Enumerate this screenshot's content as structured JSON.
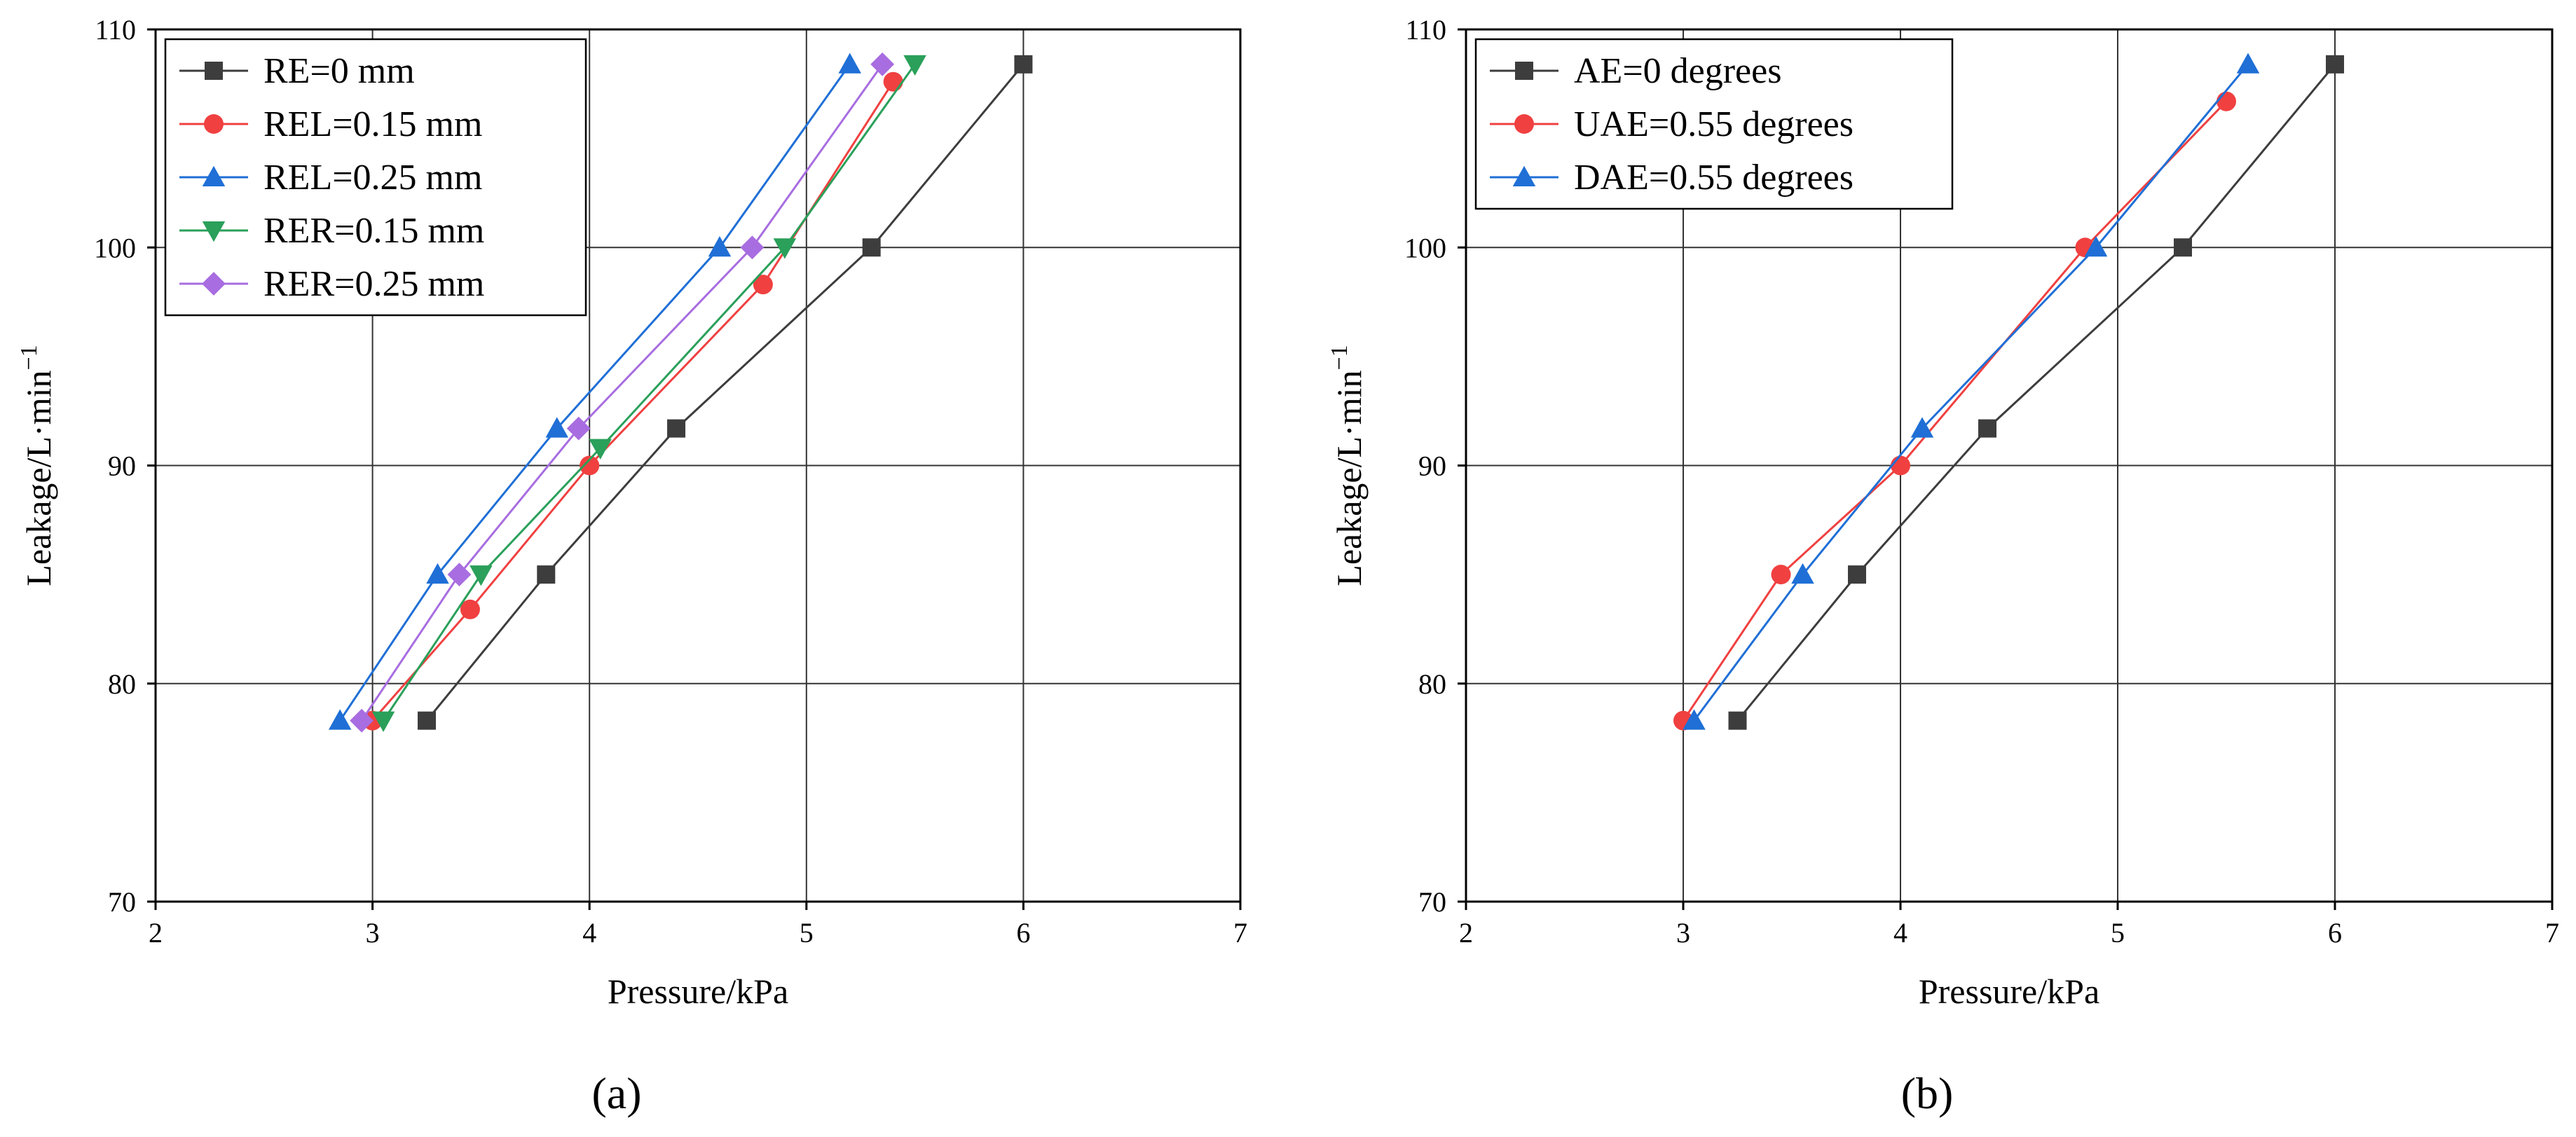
{
  "chart_data": [
    {
      "type": "line",
      "caption": "(a)",
      "xlabel": "Pressure/kPa",
      "ylabel_text": "Leakage/L·min",
      "ylabel_sup": "−1",
      "xlim": [
        2,
        7
      ],
      "ylim": [
        70,
        110
      ],
      "xticks": [
        2,
        3,
        4,
        5,
        6,
        7
      ],
      "yticks": [
        70,
        80,
        90,
        100,
        110
      ],
      "grid": true,
      "legend_position": "top-left",
      "series": [
        {
          "name": "RE=0 mm",
          "color": "#3d3d3d",
          "marker": "square",
          "x": [
            3.25,
            3.8,
            4.4,
            5.3,
            6.0
          ],
          "y": [
            78.3,
            85.0,
            91.7,
            100.0,
            108.4
          ]
        },
        {
          "name": "REL=0.15 mm",
          "color": "#f04040",
          "marker": "circle",
          "x": [
            3.0,
            3.45,
            4.0,
            4.8,
            5.4
          ],
          "y": [
            78.3,
            83.4,
            90.0,
            98.3,
            107.6
          ]
        },
        {
          "name": "REL=0.25 mm",
          "color": "#1f6fd6",
          "marker": "triangle-up",
          "x": [
            2.85,
            3.3,
            3.85,
            4.6,
            5.2
          ],
          "y": [
            78.3,
            85.0,
            91.7,
            100.0,
            108.4
          ]
        },
        {
          "name": "RER=0.15 mm",
          "color": "#2aa05a",
          "marker": "triangle-down",
          "x": [
            3.05,
            3.5,
            4.05,
            4.9,
            5.5
          ],
          "y": [
            78.3,
            85.0,
            90.8,
            100.0,
            108.4
          ]
        },
        {
          "name": "RER=0.25 mm",
          "color": "#a86de0",
          "marker": "diamond",
          "x": [
            2.95,
            3.4,
            3.95,
            4.75,
            5.35
          ],
          "y": [
            78.3,
            85.0,
            91.7,
            100.0,
            108.4
          ]
        }
      ]
    },
    {
      "type": "line",
      "caption": "(b)",
      "xlabel": "Pressure/kPa",
      "ylabel_text": "Leakage/L·min",
      "ylabel_sup": "−1",
      "xlim": [
        2,
        7
      ],
      "ylim": [
        70,
        110
      ],
      "xticks": [
        2,
        3,
        4,
        5,
        6,
        7
      ],
      "yticks": [
        70,
        80,
        90,
        100,
        110
      ],
      "grid": true,
      "legend_position": "top-left",
      "series": [
        {
          "name": "AE=0 degrees",
          "color": "#3d3d3d",
          "marker": "square",
          "x": [
            3.25,
            3.8,
            4.4,
            5.3,
            6.0
          ],
          "y": [
            78.3,
            85.0,
            91.7,
            100.0,
            108.4
          ]
        },
        {
          "name": "UAE=0.55 degrees",
          "color": "#f04040",
          "marker": "circle",
          "x": [
            3.0,
            3.45,
            4.0,
            4.85,
            5.5
          ],
          "y": [
            78.3,
            85.0,
            90.0,
            100.0,
            106.7
          ]
        },
        {
          "name": "DAE=0.55 degrees",
          "color": "#1f6fd6",
          "marker": "triangle-up",
          "x": [
            3.05,
            3.55,
            4.1,
            4.9,
            5.6
          ],
          "y": [
            78.3,
            85.0,
            91.7,
            100.0,
            108.4
          ]
        }
      ]
    }
  ]
}
